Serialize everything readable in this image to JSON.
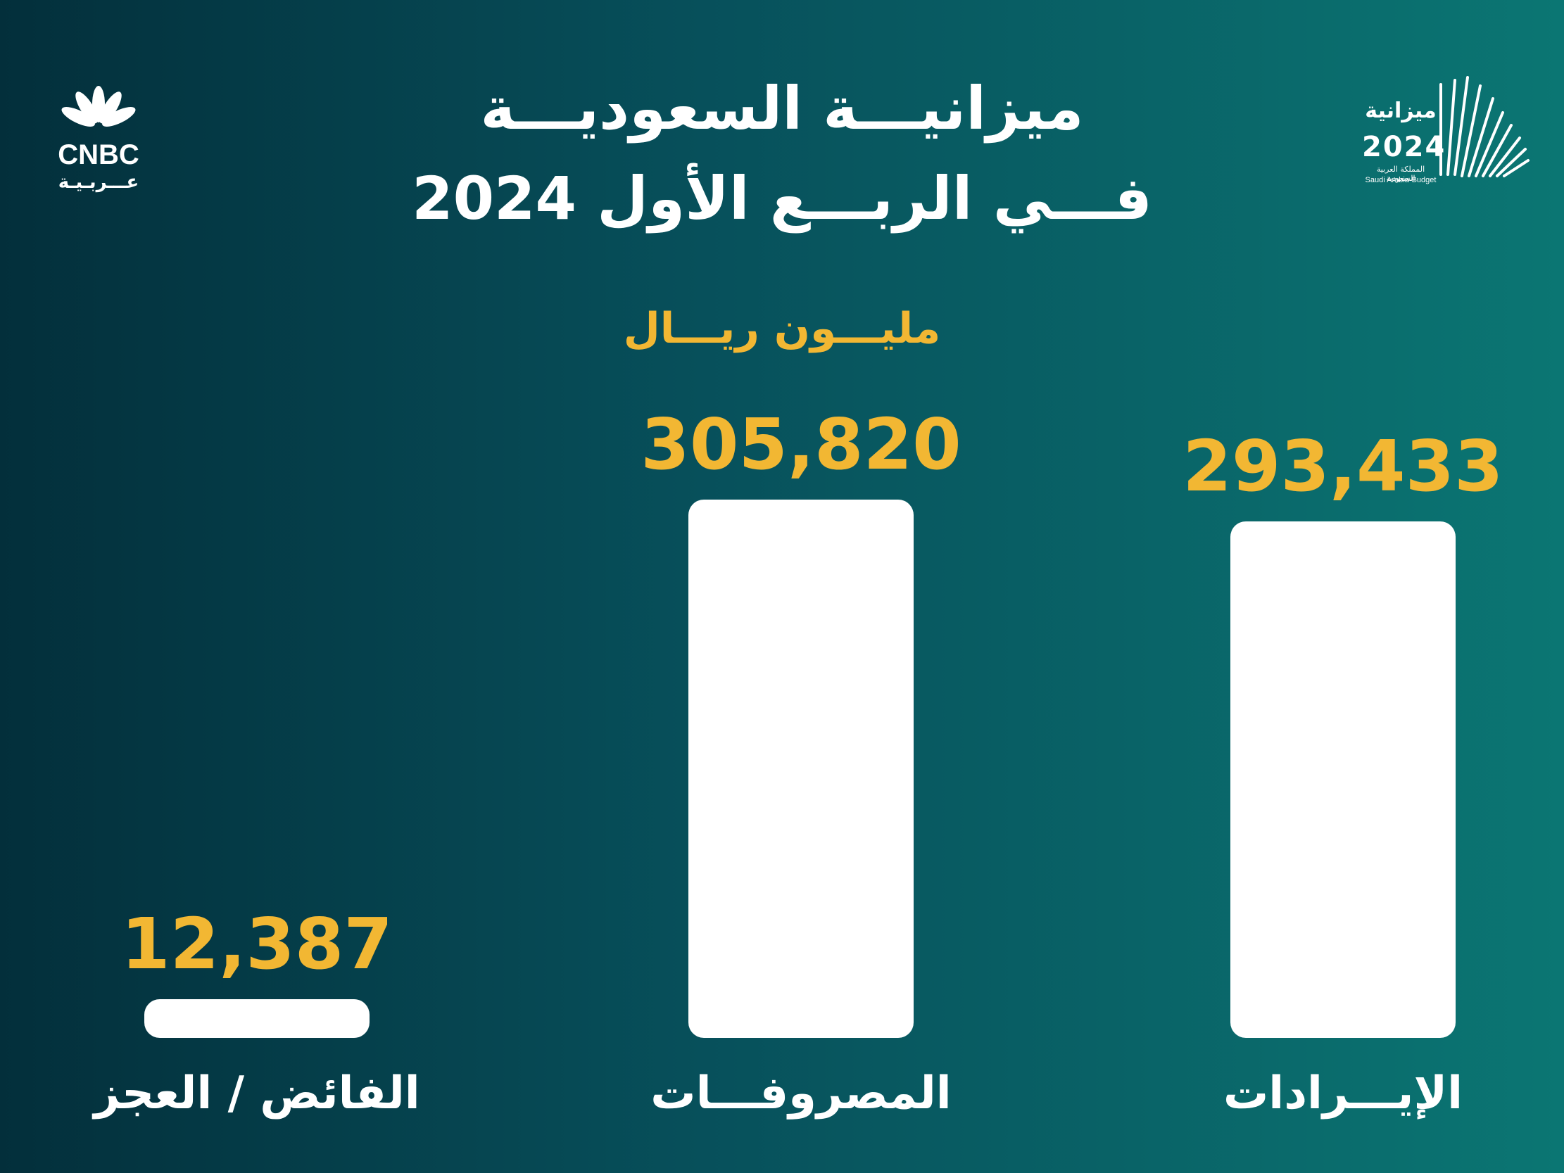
{
  "title_line1": "ميزانيـــة السعوديـــة",
  "title_line2": "فـــي الربـــع الأول 2024",
  "unit": "مليـــون ريـــال",
  "logos": {
    "cnbc_name": "CNBC",
    "cnbc_sub": "عـــربـيـة",
    "budget_ar": "ميزانية",
    "budget_year": "2024",
    "budget_country_ar": "المملكة العربية السعودية",
    "budget_en": "Saudi Arabia-Budget"
  },
  "colors": {
    "background_left": "#032f3b",
    "background_right": "#0b7673",
    "bar": "#ffffff",
    "value_label": "#f2b733",
    "text": "#ffffff"
  },
  "chart_data": {
    "type": "bar",
    "categories": [
      "الفائض / العجز",
      "المصروفـــات",
      "الإيـــرادات"
    ],
    "values": [
      12387,
      305820,
      293433
    ],
    "value_labels": [
      "12,387",
      "305,820",
      "293,433"
    ],
    "title": "ميزانيـــة السعوديـــة فـــي الربـــع الأول 2024",
    "ylabel": "مليـــون ريـــال",
    "ylim": [
      0,
      305820
    ],
    "grid": false,
    "legend": "none"
  }
}
